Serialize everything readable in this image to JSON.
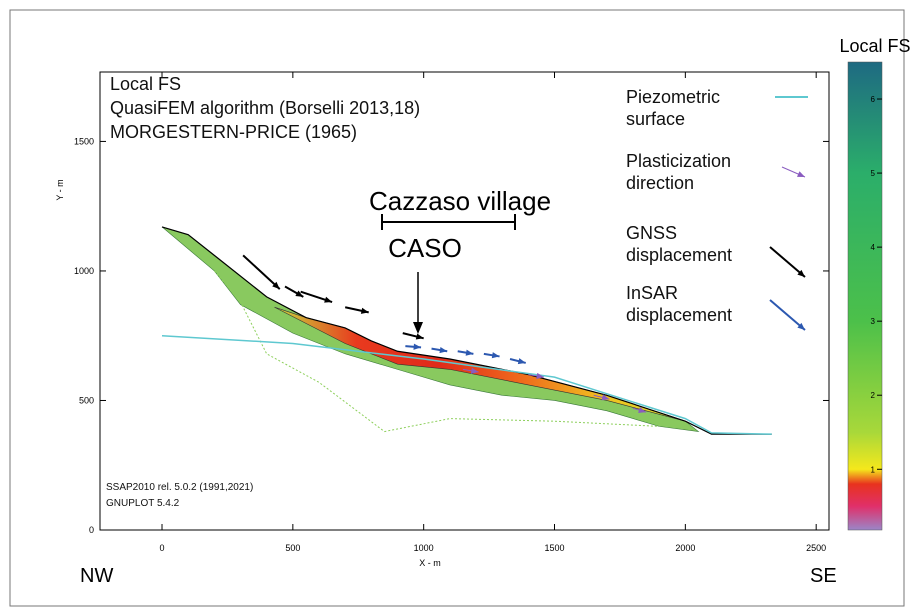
{
  "chart_data": {
    "type": "slope-profile",
    "box_text": [
      "Local FS",
      "QuasiFEM algorithm (Borselli 2013,18)",
      "MORGESTERN-PRICE (1965)"
    ],
    "xlabel": "X - m",
    "ylabel": "Y - m",
    "direction_labels": [
      "NW",
      "SE"
    ],
    "footnotes": [
      "SSAP2010 rel. 5.0.2 (1991,2021)",
      "GNUPLOT 5.4.2"
    ],
    "annotations": {
      "village": "Cazzaso village",
      "site": "CASO"
    },
    "xlim": [
      -237,
      2549
    ],
    "ylim": [
      0,
      1768
    ],
    "xticks": [
      0,
      500,
      1000,
      1500,
      2000,
      2500
    ],
    "yticks": [
      0,
      500,
      1000,
      1500
    ],
    "ground": {
      "color": "#000000",
      "x": [
        0,
        100,
        200,
        400,
        550,
        700,
        800,
        900,
        1100,
        1400,
        1700,
        2000,
        2100,
        2330
      ],
      "y": [
        1170,
        1140,
        1060,
        900,
        820,
        780,
        730,
        690,
        660,
        600,
        520,
        420,
        370,
        370
      ]
    },
    "envelope": {
      "color": "#74c043",
      "x": [
        0,
        100,
        200,
        400,
        550,
        700,
        800,
        900,
        1100,
        1400,
        1700,
        2000,
        2050,
        1900,
        1700,
        1500,
        1300,
        1100,
        900,
        700,
        500,
        300,
        200
      ],
      "y": [
        1170,
        1140,
        1060,
        900,
        820,
        780,
        730,
        690,
        660,
        600,
        520,
        420,
        380,
        400,
        460,
        500,
        520,
        560,
        620,
        680,
        760,
        870,
        1000
      ]
    },
    "deep_surface": {
      "color": "#8ccf5a",
      "x": [
        200,
        300,
        400,
        600,
        850,
        1100,
        1500,
        1900
      ],
      "y": [
        1000,
        880,
        680,
        570,
        380,
        430,
        420,
        400
      ]
    },
    "failure_mass": {
      "colors": [
        "#c8d83c",
        "#e83a1e",
        "#e02a1a",
        "#ef6a1c",
        "#f0c020",
        "#d8e030"
      ],
      "x": [
        430,
        550,
        700,
        800,
        900,
        1100,
        1400,
        1700,
        2000,
        1700,
        1400,
        1100,
        900,
        700
      ],
      "y": [
        860,
        820,
        780,
        730,
        690,
        660,
        600,
        520,
        420,
        500,
        560,
        620,
        640,
        720
      ]
    },
    "colorbar": {
      "title": "Local FS",
      "clim": [
        0.18,
        6.5
      ],
      "ticks": [
        1,
        2,
        3,
        4,
        5,
        6
      ],
      "stops": [
        {
          "value": 0.18,
          "color": "#9b86c8"
        },
        {
          "value": 0.5,
          "color": "#e0306a"
        },
        {
          "value": 0.8,
          "color": "#e8321e"
        },
        {
          "value": 1,
          "color": "#f5e81c"
        },
        {
          "value": 1.5,
          "color": "#a8d83a"
        },
        {
          "value": 3,
          "color": "#4cc04a"
        },
        {
          "value": 5,
          "color": "#2bae6a"
        },
        {
          "value": 6.5,
          "color": "#1e6a82"
        }
      ]
    },
    "series": [
      {
        "name": "Piezometric surface",
        "color": "#5ec8d0",
        "x": [
          0,
          500,
          1000,
          1500,
          2000,
          2100,
          2330
        ],
        "y": [
          750,
          720,
          660,
          590,
          430,
          375,
          370
        ]
      },
      {
        "name": "Plasticization direction",
        "color": "#8a5cc0",
        "x": [
          1150,
          1400,
          1650,
          1800
        ],
        "y": [
          620,
          600,
          520,
          470
        ],
        "dx": [
          60,
          60,
          60,
          50
        ],
        "dy": [
          -10,
          -10,
          -15,
          -15
        ]
      },
      {
        "name": "GNSS displacement",
        "color": "#000000",
        "x": [
          310,
          470,
          530,
          700,
          920
        ],
        "y": [
          1060,
          940,
          920,
          860,
          760
        ],
        "dx": [
          140,
          70,
          120,
          90,
          80
        ],
        "dy": [
          -130,
          -40,
          -40,
          -20,
          -20
        ]
      },
      {
        "name": "InSAR displacement",
        "color": "#2c58b0",
        "x": [
          930,
          1030,
          1130,
          1230,
          1330
        ],
        "y": [
          710,
          700,
          690,
          680,
          660
        ],
        "dx": [
          60,
          60,
          60,
          60,
          60
        ],
        "dy": [
          -5,
          -10,
          -10,
          -10,
          -15
        ]
      }
    ]
  }
}
